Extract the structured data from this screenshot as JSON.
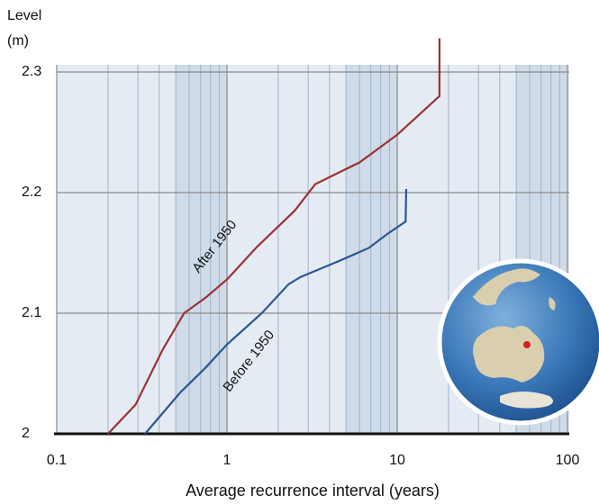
{
  "chart_data": {
    "type": "line",
    "y_label": [
      "Level",
      "(m)"
    ],
    "x_label": "Average recurrence interval (years)",
    "xscale": "log",
    "xlim": [
      0.1,
      100
    ],
    "xticks": [
      0.1,
      1,
      10,
      100
    ],
    "ylim": [
      2,
      2.3
    ],
    "yticks": [
      2,
      2.1,
      2.2,
      2.3
    ],
    "grid": true,
    "series": [
      {
        "name": "After 1950",
        "color": "#9b3232",
        "x": [
          0.2,
          0.29,
          0.42,
          0.56,
          0.75,
          1.0,
          1.5,
          2.5,
          3.3,
          6.0,
          10,
          17.7,
          17.7
        ],
        "values": [
          2.0,
          2.024,
          2.07,
          2.1,
          2.113,
          2.128,
          2.155,
          2.185,
          2.207,
          2.225,
          2.248,
          2.28,
          2.328
        ]
      },
      {
        "name": "Before 1950",
        "color": "#2c5593",
        "x": [
          0.33,
          0.53,
          0.75,
          1.0,
          1.6,
          2.3,
          2.7,
          4.5,
          6.8,
          8.8,
          11.2,
          11.3
        ],
        "values": [
          2.0,
          2.034,
          2.055,
          2.074,
          2.1,
          2.124,
          2.13,
          2.143,
          2.154,
          2.166,
          2.176,
          2.203
        ]
      }
    ]
  }
}
